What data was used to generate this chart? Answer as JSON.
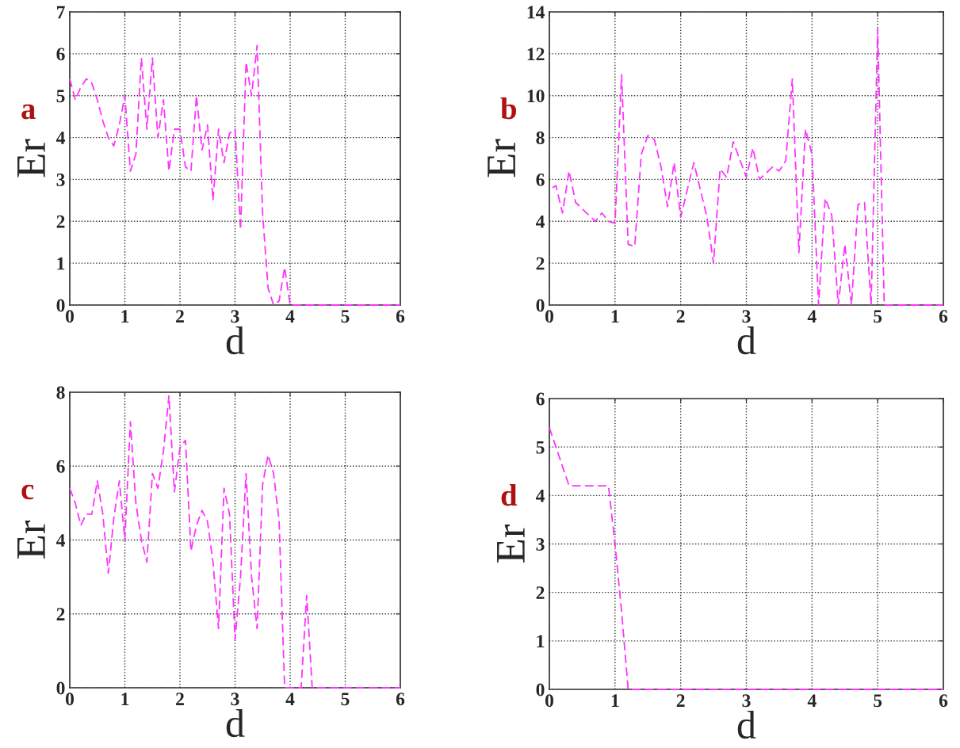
{
  "chart_data": [
    {
      "type": "line",
      "xlabel": "d",
      "ylabel": "Er",
      "annotations": [
        "a"
      ],
      "xlim": [
        0,
        6
      ],
      "ylim": [
        0,
        7
      ],
      "xticks": [
        0,
        1,
        2,
        3,
        4,
        5,
        6
      ],
      "yticks": [
        0,
        1,
        2,
        3,
        4,
        5,
        6,
        7
      ],
      "grid": true,
      "line_style": "dashed",
      "marker": "none",
      "series": [
        {
          "color": "#ff33ff",
          "x": [
            0,
            0.1,
            0.2,
            0.3,
            0.4,
            0.5,
            0.6,
            0.7,
            0.8,
            0.9,
            1.0,
            1.1,
            1.2,
            1.3,
            1.4,
            1.5,
            1.6,
            1.7,
            1.8,
            1.9,
            2.0,
            2.1,
            2.2,
            2.3,
            2.4,
            2.5,
            2.6,
            2.7,
            2.8,
            2.9,
            3.0,
            3.1,
            3.2,
            3.3,
            3.4,
            3.5,
            3.6,
            3.7,
            3.8,
            3.9,
            4.0,
            6.0
          ],
          "values": [
            5.4,
            4.9,
            5.2,
            5.4,
            5.3,
            4.9,
            4.4,
            4.0,
            3.8,
            4.3,
            5.0,
            3.2,
            3.6,
            5.9,
            4.2,
            5.9,
            4.0,
            4.9,
            3.2,
            4.2,
            4.2,
            3.3,
            3.2,
            5.0,
            3.7,
            4.3,
            2.5,
            4.2,
            3.4,
            4.1,
            4.2,
            1.8,
            5.8,
            5.0,
            6.2,
            2.2,
            0.4,
            0.0,
            0.1,
            0.9,
            0,
            0
          ]
        }
      ]
    },
    {
      "type": "line",
      "xlabel": "d",
      "ylabel": "Er",
      "annotations": [
        "b"
      ],
      "xlim": [
        0,
        6
      ],
      "ylim": [
        0,
        14
      ],
      "xticks": [
        0,
        1,
        2,
        3,
        4,
        5,
        6
      ],
      "yticks": [
        0,
        2,
        4,
        6,
        8,
        10,
        12,
        14
      ],
      "grid": true,
      "line_style": "dashed",
      "marker": "none",
      "series": [
        {
          "color": "#ff33ff",
          "x": [
            0.05,
            0.1,
            0.2,
            0.3,
            0.4,
            0.5,
            0.6,
            0.7,
            0.8,
            0.9,
            1.0,
            1.1,
            1.2,
            1.3,
            1.4,
            1.5,
            1.6,
            1.7,
            1.8,
            1.9,
            2.0,
            2.2,
            2.4,
            2.5,
            2.6,
            2.7,
            2.8,
            3.0,
            3.1,
            3.2,
            3.4,
            3.5,
            3.6,
            3.7,
            3.8,
            3.9,
            4.0,
            4.1,
            4.2,
            4.3,
            4.4,
            4.5,
            4.6,
            4.7,
            4.8,
            4.9,
            5.0,
            5.1,
            6.0
          ],
          "values": [
            5.6,
            5.7,
            4.4,
            6.4,
            4.9,
            4.6,
            4.3,
            4.0,
            4.4,
            4.0,
            3.9,
            11.0,
            2.9,
            2.8,
            7.2,
            8.1,
            7.9,
            6.6,
            4.7,
            6.8,
            4.2,
            6.8,
            4.2,
            2.0,
            6.5,
            6.1,
            7.8,
            6.1,
            7.5,
            6.0,
            6.6,
            6.4,
            6.9,
            10.8,
            2.5,
            8.4,
            7.2,
            0,
            5.1,
            4.3,
            0,
            2.9,
            0,
            4.8,
            4.9,
            0,
            13.2,
            0,
            0
          ]
        }
      ]
    },
    {
      "type": "line",
      "xlabel": "d",
      "ylabel": "Er",
      "annotations": [
        "c"
      ],
      "xlim": [
        0,
        6
      ],
      "ylim": [
        0,
        8
      ],
      "xticks": [
        0,
        1,
        2,
        3,
        4,
        5,
        6
      ],
      "yticks": [
        0,
        2,
        4,
        6,
        8
      ],
      "grid": true,
      "line_style": "dashed",
      "marker": "none",
      "series": [
        {
          "color": "#ff33ff",
          "x": [
            0,
            0.1,
            0.2,
            0.3,
            0.4,
            0.5,
            0.6,
            0.7,
            0.8,
            0.9,
            1.0,
            1.1,
            1.2,
            1.3,
            1.4,
            1.5,
            1.6,
            1.7,
            1.8,
            1.9,
            2.0,
            2.1,
            2.2,
            2.3,
            2.4,
            2.5,
            2.6,
            2.7,
            2.8,
            2.9,
            3.0,
            3.1,
            3.2,
            3.3,
            3.4,
            3.5,
            3.6,
            3.7,
            3.8,
            3.9,
            4.0,
            4.2,
            4.3,
            4.4,
            6.0
          ],
          "values": [
            5.4,
            5.0,
            4.4,
            4.7,
            4.7,
            5.6,
            4.7,
            3.1,
            4.6,
            5.6,
            4.0,
            7.2,
            5.0,
            4.0,
            3.4,
            5.8,
            5.4,
            6.4,
            7.9,
            5.3,
            6.5,
            6.7,
            3.7,
            4.4,
            4.8,
            4.5,
            3.4,
            1.6,
            5.4,
            4.7,
            1.3,
            3.0,
            5.8,
            3.0,
            1.6,
            5.5,
            6.3,
            5.8,
            4.5,
            0,
            0,
            0,
            2.5,
            0,
            0
          ]
        }
      ]
    },
    {
      "type": "line",
      "xlabel": "d",
      "ylabel": "Er",
      "annotations": [
        "d"
      ],
      "xlim": [
        0,
        6
      ],
      "ylim": [
        0,
        6
      ],
      "xticks": [
        0,
        1,
        2,
        3,
        4,
        5,
        6
      ],
      "yticks": [
        0,
        1,
        2,
        3,
        4,
        5,
        6
      ],
      "grid": true,
      "line_style": "dashed",
      "marker": "none",
      "series": [
        {
          "color": "#ff33ff",
          "x": [
            0,
            0.3,
            0.9,
            1.0,
            1.1,
            1.2,
            6.0
          ],
          "values": [
            5.4,
            4.2,
            4.2,
            3.0,
            1.6,
            0,
            0
          ]
        }
      ]
    }
  ]
}
